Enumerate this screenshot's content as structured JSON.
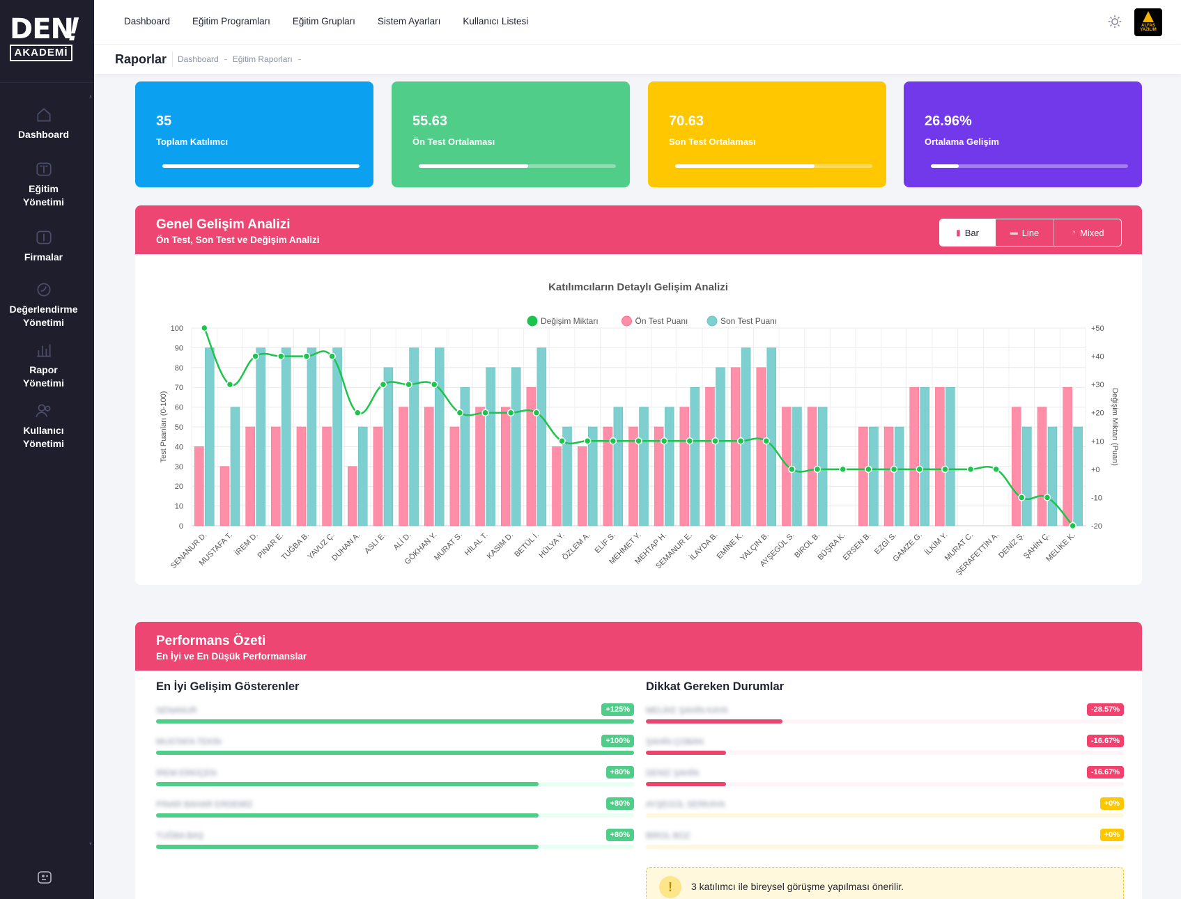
{
  "brand": {
    "logo_top": "DEN",
    "logo_bottom": "AKADEMİ",
    "badge_text": "ALFAS YAZILIM"
  },
  "sidebar": {
    "items": [
      {
        "label": "Dashboard",
        "icon": "home-icon"
      },
      {
        "label": "Eğitim Yönetimi",
        "icon": "book-icon"
      },
      {
        "label": "Firmalar",
        "icon": "book-open-icon"
      },
      {
        "label": "Değerlendirme Yönetimi",
        "icon": "leaf-icon"
      },
      {
        "label": "Rapor Yönetimi",
        "icon": "bar-chart-icon"
      },
      {
        "label": "Kullanıcı Yönetimi",
        "icon": "users-icon"
      }
    ]
  },
  "topnav": [
    "Dashboard",
    "Eğitim Programları",
    "Eğitim Grupları",
    "Sistem Ayarları",
    "Kullanıcı Listesi"
  ],
  "subheader": {
    "title": "Raporlar",
    "crumbs": [
      "Dashboard",
      "Eğitim Raporları"
    ]
  },
  "stats": [
    {
      "value": "35",
      "label": "Toplam Katılımcı",
      "color": "#0ba0f0",
      "progress": 1.0
    },
    {
      "value": "55.63",
      "label": "Ön Test Ortalaması",
      "color": "#50cd89",
      "progress": 0.5563
    },
    {
      "value": "70.63",
      "label": "Son Test Ortalaması",
      "color": "#ffc700",
      "progress": 0.7063
    },
    {
      "value": "26.96%",
      "label": "Ortalama Gelişim",
      "color": "#7239ea",
      "progress": 0.14
    }
  ],
  "analysis_panel": {
    "title": "Genel Gelişim Analizi",
    "subtitle": "Ön Test, Son Test ve Değişim Analizi",
    "toggles": [
      "Bar",
      "Line",
      "Mixed"
    ],
    "active_toggle": "Bar"
  },
  "chart_data": {
    "type": "bar",
    "title": "Katılımcıların Detaylı Gelişim Analizi",
    "ylabel": "Test Puanları (0-100)",
    "y2label": "Değişim Miktarı (Puan)",
    "ylim": [
      0,
      100
    ],
    "y2lim": [
      -20,
      50
    ],
    "y_ticks": [
      "0",
      "10",
      "20",
      "30",
      "40",
      "50",
      "60",
      "70",
      "80",
      "90",
      "100"
    ],
    "y2_ticks": [
      "-20",
      "-10",
      "+0",
      "+10",
      "+20",
      "+30",
      "+40",
      "+50"
    ],
    "legend": [
      "Değişim Miktarı",
      "Ön Test Puanı",
      "Son Test Puanı"
    ],
    "categories": [
      "SENANUR D.",
      "MUSTAFA T.",
      "İREM D.",
      "PINAR E.",
      "TUĞBA B.",
      "YAVUZ Ç.",
      "DUHAN A.",
      "ASLI E.",
      "ALİ D.",
      "GÖKHAN Y.",
      "MURAT S.",
      "HİLAL T.",
      "KASIM D.",
      "BETÜL İ.",
      "HÜLYA Y.",
      "ÖZLEM A.",
      "ELİF S.",
      "MEHMET Y.",
      "MEHTAP H.",
      "SEMANUR E.",
      "İLAYDA B.",
      "EMİNE K.",
      "YALÇIN B.",
      "AYŞEGÜL S.",
      "BİROL B.",
      "BÜŞRA K.",
      "ERSEN B.",
      "EZGİ S.",
      "GAMZE G.",
      "İLKİM Y.",
      "MURAT C.",
      "ŞERAFETTİN A.",
      "DENİZ Ş.",
      "ŞAHİN Ç.",
      "MELİKE K."
    ],
    "series": [
      {
        "name": "Ön Test Puanı",
        "color": "#ff8fa8",
        "values": [
          40,
          30,
          50,
          50,
          50,
          50,
          30,
          50,
          60,
          60,
          50,
          60,
          60,
          70,
          40,
          40,
          50,
          50,
          50,
          60,
          70,
          80,
          80,
          60,
          60,
          0,
          50,
          50,
          70,
          70,
          0,
          0,
          60,
          60,
          70
        ]
      },
      {
        "name": "Son Test Puanı",
        "color": "#7ecfcf",
        "values": [
          90,
          60,
          90,
          90,
          90,
          90,
          50,
          80,
          90,
          90,
          70,
          80,
          80,
          90,
          50,
          50,
          60,
          60,
          60,
          70,
          80,
          90,
          90,
          60,
          60,
          0,
          50,
          50,
          70,
          70,
          0,
          0,
          50,
          50,
          50
        ]
      },
      {
        "name": "Değişim Miktarı",
        "color": "#1cc44e",
        "values": [
          50,
          30,
          40,
          40,
          40,
          40,
          20,
          30,
          30,
          30,
          20,
          20,
          20,
          20,
          10,
          10,
          10,
          10,
          10,
          10,
          10,
          10,
          10,
          0,
          0,
          0,
          0,
          0,
          0,
          0,
          0,
          0,
          -10,
          -10,
          -20
        ]
      }
    ]
  },
  "performance_panel": {
    "title": "Performans Özeti",
    "subtitle": "En İyi ve En Düşük Performanslar",
    "best": {
      "title": "En İyi Gelişim Gösterenler",
      "items": [
        {
          "name": "SENANUR",
          "badge": "+125%",
          "progress": 1.0
        },
        {
          "name": "MUSTAFA TEKİN",
          "badge": "+100%",
          "progress": 1.0
        },
        {
          "name": "İREM ERKİÇEN",
          "badge": "+80%",
          "progress": 0.8
        },
        {
          "name": "PINAR BAHAR ERDEMİZ",
          "badge": "+80%",
          "progress": 0.8
        },
        {
          "name": "TUĞBA BAŞ",
          "badge": "+80%",
          "progress": 0.8
        }
      ]
    },
    "attention": {
      "title": "Dikkat Gereken Durumlar",
      "items": [
        {
          "name": "MELİKE ŞAHİN KAYA",
          "badge": "-28.57%",
          "progress": 0.285,
          "kind": "neg"
        },
        {
          "name": "ŞAHİN ÇOBAN",
          "badge": "-16.67%",
          "progress": 0.167,
          "kind": "neg"
        },
        {
          "name": "DENİZ ŞAHİN",
          "badge": "-16.67%",
          "progress": 0.167,
          "kind": "neg"
        },
        {
          "name": "AYŞEGÜL SERKAYA",
          "badge": "+0%",
          "progress": 0,
          "kind": "zero"
        },
        {
          "name": "BİROL BOZ",
          "badge": "+0%",
          "progress": 0,
          "kind": "zero"
        }
      ]
    },
    "alert": "3 katılımcı ile bireysel görüşme yapılması önerilir."
  }
}
